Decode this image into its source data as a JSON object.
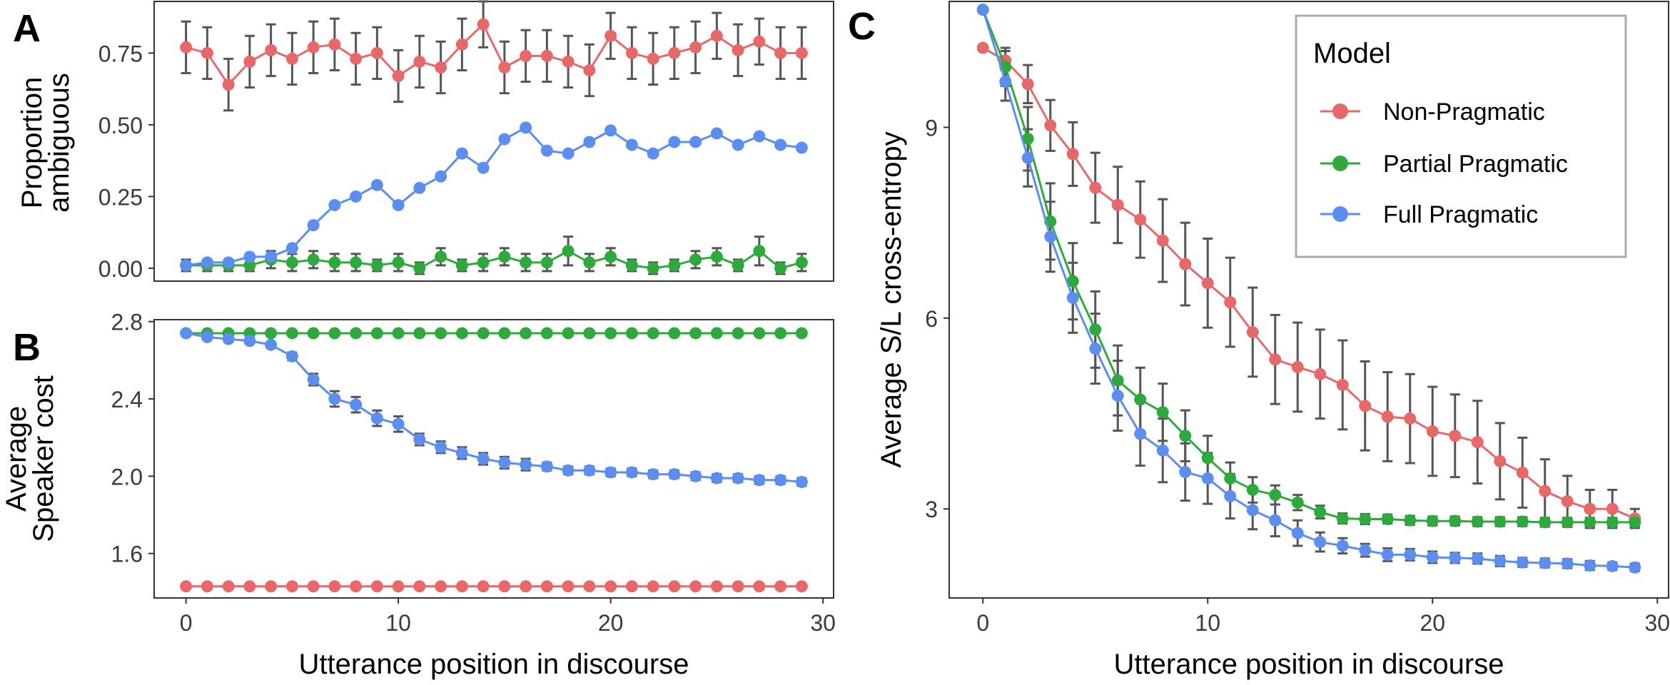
{
  "colors": {
    "non_pragmatic": "#E8686A",
    "partial_pragmatic": "#2EAA3C",
    "full_pragmatic": "#5B8EF0",
    "error_bar": "#555555",
    "panel_border": "#333333",
    "axis_text": "#3a3a3a"
  },
  "chart_data": [
    {
      "panel_label": "A",
      "type": "line",
      "xlabel": "",
      "ylabel_lines": [
        "Proportion",
        "ambiguous"
      ],
      "xlim": [
        -1.5,
        30.5
      ],
      "ylim": [
        -0.045,
        0.93
      ],
      "x_ticks": [],
      "y_ticks": [
        0.0,
        0.25,
        0.5,
        0.75
      ],
      "y_tick_labels": [
        "0.00",
        "0.25",
        "0.50",
        "0.75"
      ],
      "grid": false,
      "series": [
        {
          "key": "non_pragmatic",
          "x": [
            0,
            1,
            2,
            3,
            4,
            5,
            6,
            7,
            8,
            9,
            10,
            11,
            12,
            13,
            14,
            15,
            16,
            17,
            18,
            19,
            20,
            21,
            22,
            23,
            24,
            25,
            26,
            27,
            28,
            29
          ],
          "y": [
            0.77,
            0.75,
            0.64,
            0.72,
            0.76,
            0.73,
            0.77,
            0.78,
            0.73,
            0.75,
            0.67,
            0.72,
            0.7,
            0.78,
            0.85,
            0.7,
            0.74,
            0.74,
            0.72,
            0.69,
            0.81,
            0.75,
            0.73,
            0.75,
            0.77,
            0.81,
            0.76,
            0.79,
            0.75,
            0.75
          ],
          "err": [
            0.09,
            0.09,
            0.09,
            0.09,
            0.09,
            0.09,
            0.09,
            0.09,
            0.09,
            0.09,
            0.09,
            0.09,
            0.09,
            0.09,
            0.08,
            0.09,
            0.09,
            0.09,
            0.09,
            0.09,
            0.08,
            0.09,
            0.09,
            0.09,
            0.09,
            0.08,
            0.09,
            0.08,
            0.09,
            0.09
          ]
        },
        {
          "key": "partial_pragmatic",
          "x": [
            0,
            1,
            2,
            3,
            4,
            5,
            6,
            7,
            8,
            9,
            10,
            11,
            12,
            13,
            14,
            15,
            16,
            17,
            18,
            19,
            20,
            21,
            22,
            23,
            24,
            25,
            26,
            27,
            28,
            29
          ],
          "y": [
            0.01,
            0.01,
            0.01,
            0.01,
            0.03,
            0.02,
            0.03,
            0.02,
            0.02,
            0.01,
            0.02,
            0.0,
            0.04,
            0.01,
            0.02,
            0.04,
            0.02,
            0.02,
            0.06,
            0.02,
            0.04,
            0.01,
            0.0,
            0.01,
            0.03,
            0.04,
            0.01,
            0.06,
            0.0,
            0.02
          ],
          "err": [
            0.02,
            0.02,
            0.02,
            0.02,
            0.03,
            0.03,
            0.03,
            0.03,
            0.03,
            0.02,
            0.03,
            0.02,
            0.03,
            0.02,
            0.03,
            0.03,
            0.03,
            0.03,
            0.05,
            0.03,
            0.03,
            0.02,
            0.02,
            0.02,
            0.03,
            0.03,
            0.02,
            0.05,
            0.02,
            0.03
          ]
        },
        {
          "key": "full_pragmatic",
          "x": [
            0,
            1,
            2,
            3,
            4,
            5,
            6,
            7,
            8,
            9,
            10,
            11,
            12,
            13,
            14,
            15,
            16,
            17,
            18,
            19,
            20,
            21,
            22,
            23,
            24,
            25,
            26,
            27,
            28,
            29
          ],
          "y": [
            0.01,
            0.02,
            0.02,
            0.04,
            0.04,
            0.07,
            0.15,
            0.22,
            0.25,
            0.29,
            0.22,
            0.28,
            0.32,
            0.4,
            0.35,
            0.45,
            0.49,
            0.41,
            0.4,
            0.44,
            0.48,
            0.43,
            0.4,
            0.44,
            0.44,
            0.47,
            0.43,
            0.46,
            0.43,
            0.42
          ]
        }
      ]
    },
    {
      "panel_label": "B",
      "type": "line",
      "xlabel": "Utterance position in discourse",
      "ylabel_lines": [
        "Average",
        "Speaker cost"
      ],
      "xlim": [
        -1.5,
        30.5
      ],
      "ylim": [
        1.37,
        2.81
      ],
      "x_ticks": [
        0,
        10,
        20,
        30
      ],
      "y_ticks": [
        1.6,
        2.0,
        2.4,
        2.8
      ],
      "y_tick_labels": [
        "1.6",
        "2.0",
        "2.4",
        "2.8"
      ],
      "grid": false,
      "series": [
        {
          "key": "non_pragmatic",
          "x": [
            0,
            1,
            2,
            3,
            4,
            5,
            6,
            7,
            8,
            9,
            10,
            11,
            12,
            13,
            14,
            15,
            16,
            17,
            18,
            19,
            20,
            21,
            22,
            23,
            24,
            25,
            26,
            27,
            28,
            29
          ],
          "y": [
            1.43,
            1.43,
            1.43,
            1.43,
            1.43,
            1.43,
            1.43,
            1.43,
            1.43,
            1.43,
            1.43,
            1.43,
            1.43,
            1.43,
            1.43,
            1.43,
            1.43,
            1.43,
            1.43,
            1.43,
            1.43,
            1.43,
            1.43,
            1.43,
            1.43,
            1.43,
            1.43,
            1.43,
            1.43,
            1.43
          ]
        },
        {
          "key": "partial_pragmatic",
          "x": [
            0,
            1,
            2,
            3,
            4,
            5,
            6,
            7,
            8,
            9,
            10,
            11,
            12,
            13,
            14,
            15,
            16,
            17,
            18,
            19,
            20,
            21,
            22,
            23,
            24,
            25,
            26,
            27,
            28,
            29
          ],
          "y": [
            2.74,
            2.74,
            2.74,
            2.74,
            2.74,
            2.74,
            2.74,
            2.74,
            2.74,
            2.74,
            2.74,
            2.74,
            2.74,
            2.74,
            2.74,
            2.74,
            2.74,
            2.74,
            2.74,
            2.74,
            2.74,
            2.74,
            2.74,
            2.74,
            2.74,
            2.74,
            2.74,
            2.74,
            2.74,
            2.74
          ]
        },
        {
          "key": "full_pragmatic",
          "x": [
            0,
            1,
            2,
            3,
            4,
            5,
            6,
            7,
            8,
            9,
            10,
            11,
            12,
            13,
            14,
            15,
            16,
            17,
            18,
            19,
            20,
            21,
            22,
            23,
            24,
            25,
            26,
            27,
            28,
            29
          ],
          "y": [
            2.74,
            2.72,
            2.71,
            2.7,
            2.68,
            2.62,
            2.5,
            2.4,
            2.37,
            2.3,
            2.27,
            2.19,
            2.15,
            2.12,
            2.09,
            2.07,
            2.06,
            2.05,
            2.03,
            2.03,
            2.02,
            2.02,
            2.01,
            2.01,
            2.0,
            1.99,
            1.99,
            1.98,
            1.98,
            1.97
          ],
          "err": [
            0,
            0,
            0,
            0.01,
            0.01,
            0.02,
            0.03,
            0.04,
            0.04,
            0.04,
            0.04,
            0.03,
            0.03,
            0.03,
            0.03,
            0.03,
            0.03,
            0.02,
            0.02,
            0.02,
            0.02,
            0.02,
            0.02,
            0.02,
            0.02,
            0.02,
            0.02,
            0.02,
            0.02,
            0.02
          ]
        }
      ]
    },
    {
      "panel_label": "C",
      "type": "line",
      "xlabel": "Utterance position in discourse",
      "ylabel_lines": [
        "Average S/L cross-entropy"
      ],
      "xlim": [
        -1.5,
        30.5
      ],
      "ylim": [
        1.6,
        10.98
      ],
      "x_ticks": [
        0,
        10,
        20,
        30
      ],
      "y_ticks": [
        3,
        6,
        9
      ],
      "y_tick_labels": [
        "3",
        "6",
        "9"
      ],
      "grid": false,
      "legend": {
        "title": "Model",
        "placement": "top-right",
        "entries": [
          {
            "key": "non_pragmatic",
            "label": "Non-Pragmatic"
          },
          {
            "key": "partial_pragmatic",
            "label": "Partial Pragmatic"
          },
          {
            "key": "full_pragmatic",
            "label": "Full Pragmatic"
          }
        ]
      },
      "series": [
        {
          "key": "non_pragmatic",
          "x": [
            0,
            1,
            2,
            3,
            4,
            5,
            6,
            7,
            8,
            9,
            10,
            11,
            12,
            13,
            14,
            15,
            16,
            17,
            18,
            19,
            20,
            21,
            22,
            23,
            24,
            25,
            26,
            27,
            28,
            29
          ],
          "y": [
            10.25,
            10.05,
            9.68,
            9.03,
            8.58,
            8.05,
            7.78,
            7.55,
            7.22,
            6.85,
            6.55,
            6.25,
            5.78,
            5.35,
            5.23,
            5.12,
            4.95,
            4.62,
            4.45,
            4.42,
            4.22,
            4.15,
            4.05,
            3.75,
            3.57,
            3.28,
            3.12,
            3.0,
            3.0,
            2.85
          ],
          "err": [
            0,
            0.15,
            0.3,
            0.4,
            0.5,
            0.55,
            0.6,
            0.6,
            0.65,
            0.65,
            0.7,
            0.7,
            0.7,
            0.7,
            0.7,
            0.7,
            0.7,
            0.7,
            0.7,
            0.7,
            0.7,
            0.65,
            0.65,
            0.6,
            0.55,
            0.5,
            0.4,
            0.3,
            0.3,
            0.15
          ]
        },
        {
          "key": "partial_pragmatic",
          "x": [
            0,
            1,
            2,
            3,
            4,
            5,
            6,
            7,
            8,
            9,
            10,
            11,
            12,
            13,
            14,
            15,
            16,
            17,
            18,
            19,
            20,
            21,
            22,
            23,
            24,
            25,
            26,
            27,
            28,
            29
          ],
          "y": [
            10.85,
            9.95,
            8.82,
            7.52,
            6.58,
            5.82,
            5.02,
            4.72,
            4.52,
            4.15,
            3.8,
            3.48,
            3.3,
            3.22,
            3.1,
            2.95,
            2.85,
            2.84,
            2.84,
            2.82,
            2.81,
            2.81,
            2.8,
            2.8,
            2.8,
            2.79,
            2.79,
            2.79,
            2.79,
            2.79
          ],
          "err": [
            0,
            0.3,
            0.5,
            0.6,
            0.6,
            0.6,
            0.55,
            0.5,
            0.45,
            0.4,
            0.35,
            0.25,
            0.2,
            0.15,
            0.12,
            0.1,
            0.08,
            0.08,
            0.07,
            0.07,
            0.07,
            0.07,
            0.07,
            0.07,
            0.07,
            0.07,
            0.07,
            0.07,
            0.07,
            0.07
          ]
        },
        {
          "key": "full_pragmatic",
          "x": [
            0,
            1,
            2,
            3,
            4,
            5,
            6,
            7,
            8,
            9,
            10,
            11,
            12,
            13,
            14,
            15,
            16,
            17,
            18,
            19,
            20,
            21,
            22,
            23,
            24,
            25,
            26,
            27,
            28,
            29
          ],
          "y": [
            10.85,
            9.72,
            8.52,
            7.28,
            6.32,
            5.52,
            4.78,
            4.18,
            3.92,
            3.58,
            3.48,
            3.2,
            2.98,
            2.82,
            2.62,
            2.48,
            2.42,
            2.35,
            2.28,
            2.28,
            2.24,
            2.23,
            2.22,
            2.18,
            2.16,
            2.15,
            2.14,
            2.11,
            2.1,
            2.08
          ],
          "err": [
            0,
            0.3,
            0.45,
            0.55,
            0.55,
            0.55,
            0.55,
            0.5,
            0.5,
            0.45,
            0.4,
            0.35,
            0.3,
            0.25,
            0.2,
            0.15,
            0.12,
            0.1,
            0.1,
            0.09,
            0.09,
            0.08,
            0.08,
            0.08,
            0.07,
            0.07,
            0.07,
            0.07,
            0.06,
            0.06
          ]
        }
      ]
    }
  ]
}
